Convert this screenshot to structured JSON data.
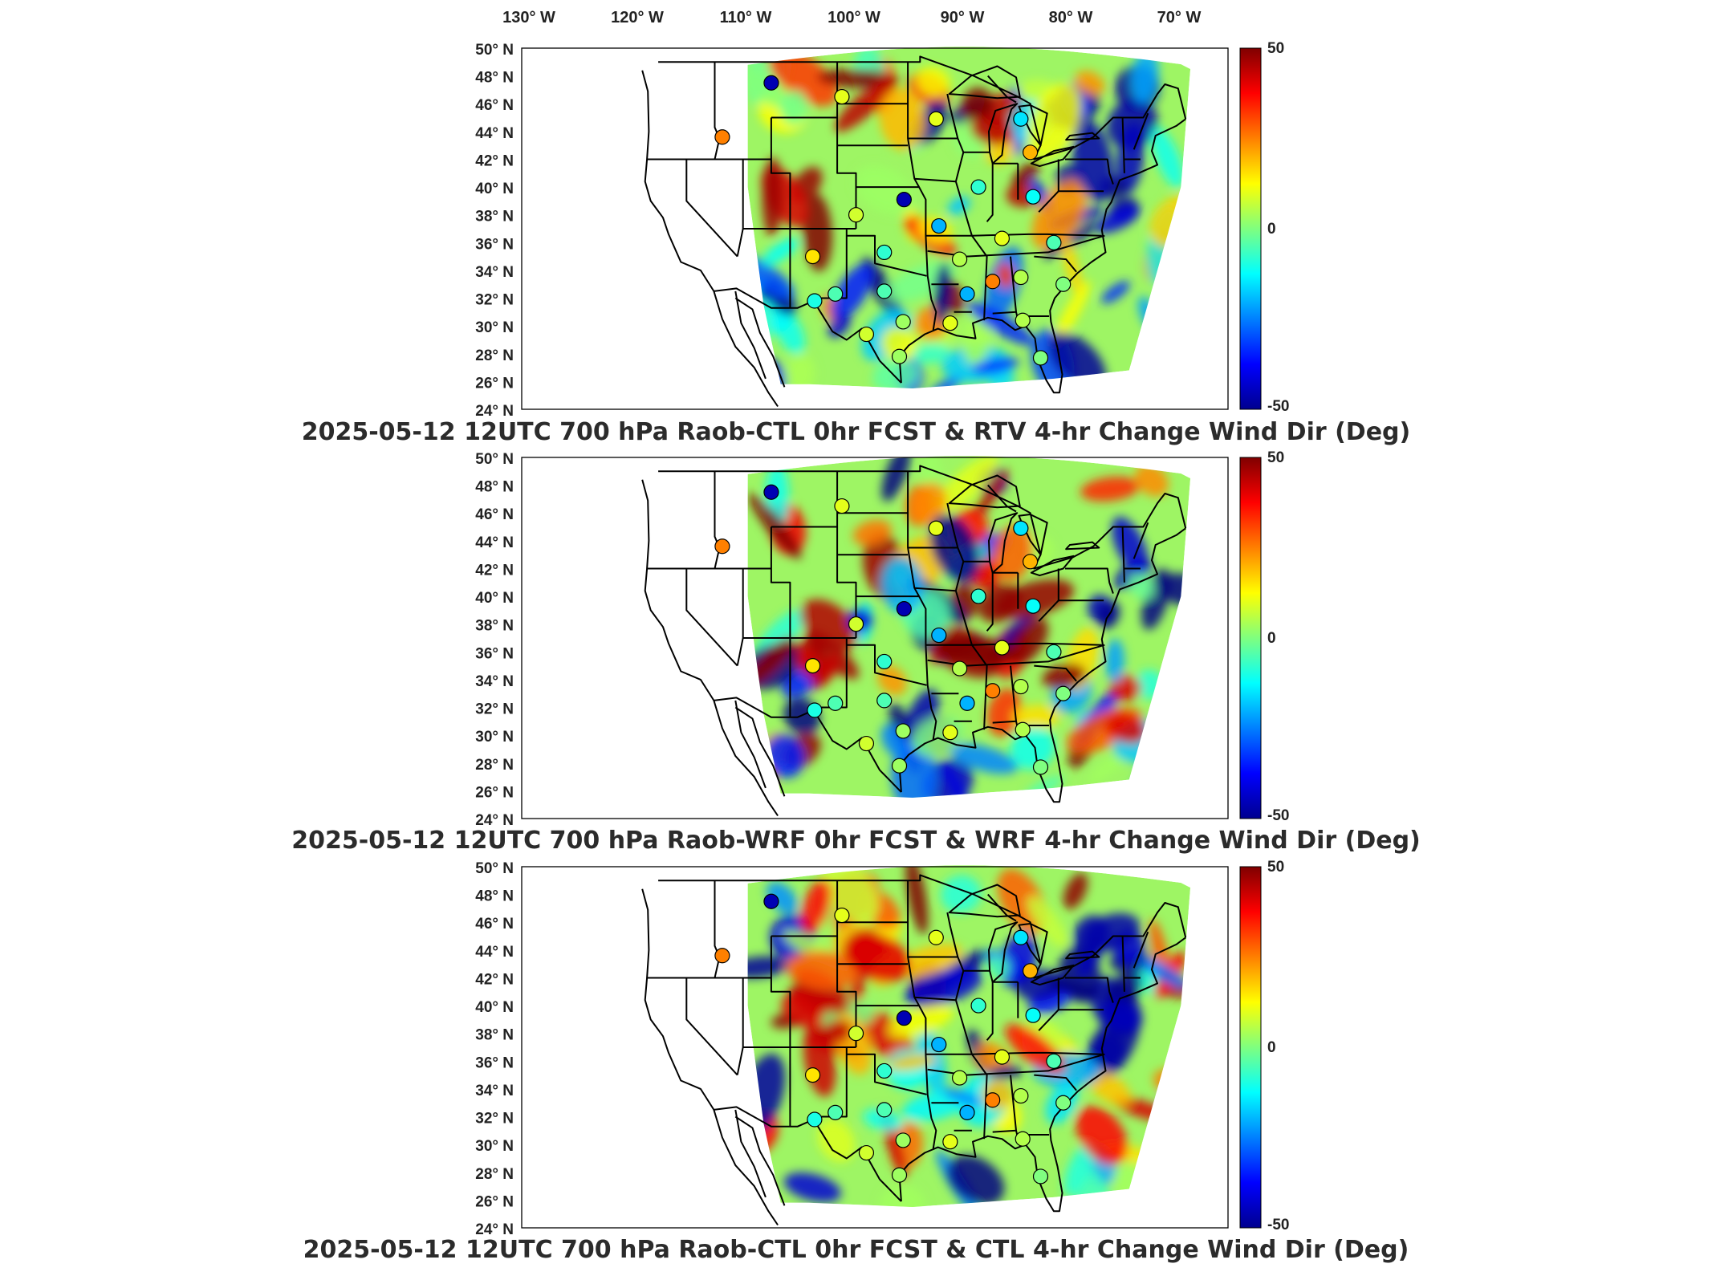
{
  "figure": {
    "lon_labels": [
      "130° W",
      "120° W",
      "110° W",
      "100° W",
      "90° W",
      "80° W",
      "70° W"
    ],
    "lat_labels": [
      "50° N",
      "48° N",
      "46° N",
      "44° N",
      "42° N",
      "40° N",
      "38° N",
      "36° N",
      "34° N",
      "32° N",
      "30° N",
      "28° N",
      "26° N",
      "24° N"
    ],
    "colorbar": {
      "max_label": "50",
      "mid_label": "0",
      "min_label": "-50",
      "range": [
        -50,
        50
      ],
      "colormap": "jet"
    },
    "panels": [
      {
        "title": "2025-05-12 12UTC 700 hPa Raob-CTL 0hr FCST & RTV 4-hr Change Wind Dir (Deg)"
      },
      {
        "title": "2025-05-12 12UTC 700 hPa Raob-WRF 0hr FCST & WRF 4-hr Change Wind Dir (Deg)"
      },
      {
        "title": "2025-05-12 12UTC 700 hPa Raob-CTL 0hr FCST & CTL 4-hr Change Wind Dir (Deg)"
      }
    ],
    "stations": [
      {
        "lon": -111.0,
        "lat": 47.5,
        "value": -45
      },
      {
        "lon": -103.5,
        "lat": 46.5,
        "value": 10
      },
      {
        "lon": -116.2,
        "lat": 43.6,
        "value": 25
      },
      {
        "lon": -93.5,
        "lat": 44.9,
        "value": 10
      },
      {
        "lon": -84.5,
        "lat": 44.9,
        "value": -15
      },
      {
        "lon": -83.5,
        "lat": 42.5,
        "value": 20
      },
      {
        "lon": -96.9,
        "lat": 39.1,
        "value": -45
      },
      {
        "lon": -89.0,
        "lat": 40.0,
        "value": -8
      },
      {
        "lon": -83.2,
        "lat": 39.3,
        "value": -12
      },
      {
        "lon": -102.0,
        "lat": 38.0,
        "value": 8
      },
      {
        "lon": -93.2,
        "lat": 37.2,
        "value": -20
      },
      {
        "lon": -106.6,
        "lat": 35.0,
        "value": 15
      },
      {
        "lon": -99.0,
        "lat": 35.3,
        "value": -8
      },
      {
        "lon": -91.0,
        "lat": 34.8,
        "value": 5
      },
      {
        "lon": -86.5,
        "lat": 36.3,
        "value": 10
      },
      {
        "lon": -81.0,
        "lat": 36.0,
        "value": -5
      },
      {
        "lon": -87.5,
        "lat": 33.2,
        "value": 25
      },
      {
        "lon": -84.5,
        "lat": 33.5,
        "value": 5
      },
      {
        "lon": -80.0,
        "lat": 33.0,
        "value": 0
      },
      {
        "lon": -90.2,
        "lat": 32.3,
        "value": -20
      },
      {
        "lon": -104.2,
        "lat": 32.3,
        "value": -5
      },
      {
        "lon": -99.0,
        "lat": 32.5,
        "value": -5
      },
      {
        "lon": -106.4,
        "lat": 31.8,
        "value": -10
      },
      {
        "lon": -97.4,
        "lat": 27.8,
        "value": 3
      },
      {
        "lon": -100.9,
        "lat": 29.4,
        "value": 8
      },
      {
        "lon": -82.4,
        "lat": 27.7,
        "value": 0
      },
      {
        "lon": -84.3,
        "lat": 30.4,
        "value": 5
      },
      {
        "lon": -92.0,
        "lat": 30.2,
        "value": 10
      },
      {
        "lon": -97.0,
        "lat": 30.3,
        "value": 3
      }
    ]
  }
}
